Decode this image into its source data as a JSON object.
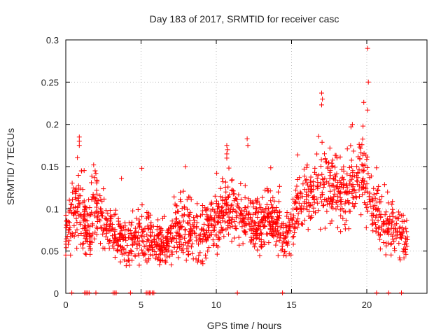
{
  "chart_data": {
    "type": "scatter",
    "title": "Day 183 of 2017, SRMTID for receiver casc",
    "xlabel": "GPS time / hours",
    "ylabel": "SRMTID / TECUs",
    "xlim": [
      0,
      24
    ],
    "ylim": [
      0,
      0.3
    ],
    "x_ticks": [
      0,
      5,
      10,
      15,
      20
    ],
    "x_tick_labels": [
      "0",
      "5",
      "10",
      "15",
      "20"
    ],
    "y_ticks": [
      0,
      0.05,
      0.1,
      0.15,
      0.2,
      0.25,
      0.3
    ],
    "y_tick_labels": [
      "0",
      "0.05",
      "0.1",
      "0.15",
      "0.2",
      "0.25",
      "0.3"
    ],
    "grid": true,
    "marker": "+",
    "color": "#ff0000",
    "series": [
      {
        "name": "SRMTID",
        "profile": [
          [
            0.0,
            0.07,
            0.03
          ],
          [
            0.5,
            0.09,
            0.035
          ],
          [
            0.8,
            0.11,
            0.04
          ],
          [
            1.2,
            0.08,
            0.035
          ],
          [
            1.6,
            0.07,
            0.03
          ],
          [
            2.0,
            0.11,
            0.035
          ],
          [
            2.5,
            0.08,
            0.03
          ],
          [
            3.0,
            0.07,
            0.03
          ],
          [
            3.5,
            0.07,
            0.03
          ],
          [
            4.0,
            0.06,
            0.025
          ],
          [
            4.5,
            0.06,
            0.025
          ],
          [
            5.0,
            0.07,
            0.03
          ],
          [
            5.5,
            0.065,
            0.025
          ],
          [
            6.0,
            0.06,
            0.025
          ],
          [
            6.5,
            0.06,
            0.025
          ],
          [
            7.0,
            0.065,
            0.025
          ],
          [
            7.5,
            0.075,
            0.03
          ],
          [
            8.0,
            0.08,
            0.035
          ],
          [
            8.5,
            0.07,
            0.03
          ],
          [
            9.0,
            0.07,
            0.03
          ],
          [
            9.5,
            0.08,
            0.03
          ],
          [
            10.0,
            0.08,
            0.03
          ],
          [
            10.5,
            0.1,
            0.035
          ],
          [
            11.0,
            0.1,
            0.035
          ],
          [
            11.5,
            0.09,
            0.03
          ],
          [
            12.0,
            0.09,
            0.03
          ],
          [
            12.5,
            0.08,
            0.03
          ],
          [
            13.0,
            0.08,
            0.03
          ],
          [
            13.5,
            0.09,
            0.03
          ],
          [
            14.0,
            0.08,
            0.03
          ],
          [
            14.5,
            0.07,
            0.03
          ],
          [
            15.0,
            0.07,
            0.025
          ],
          [
            15.5,
            0.11,
            0.035
          ],
          [
            16.0,
            0.11,
            0.035
          ],
          [
            16.5,
            0.12,
            0.035
          ],
          [
            17.0,
            0.12,
            0.04
          ],
          [
            17.5,
            0.13,
            0.04
          ],
          [
            18.0,
            0.13,
            0.04
          ],
          [
            18.5,
            0.11,
            0.04
          ],
          [
            19.0,
            0.13,
            0.04
          ],
          [
            19.5,
            0.14,
            0.045
          ],
          [
            20.0,
            0.12,
            0.04
          ],
          [
            20.5,
            0.1,
            0.035
          ],
          [
            21.0,
            0.08,
            0.03
          ],
          [
            21.5,
            0.08,
            0.03
          ],
          [
            22.0,
            0.07,
            0.03
          ],
          [
            22.7,
            0.07,
            0.025
          ]
        ],
        "count": 1700,
        "peaks": [
          [
            20.05,
            0.29
          ],
          [
            20.1,
            0.25
          ],
          [
            19.8,
            0.226
          ],
          [
            20.05,
            0.217
          ],
          [
            17.0,
            0.237
          ],
          [
            17.05,
            0.23
          ],
          [
            17.0,
            0.223
          ],
          [
            19.75,
            0.198
          ],
          [
            18.95,
            0.197
          ],
          [
            16.8,
            0.186
          ],
          [
            0.9,
            0.185
          ],
          [
            0.9,
            0.18
          ],
          [
            0.9,
            0.175
          ],
          [
            12.05,
            0.183
          ],
          [
            10.7,
            0.175
          ],
          [
            10.75,
            0.17
          ],
          [
            12.1,
            0.175
          ],
          [
            10.7,
            0.165
          ],
          [
            7.95,
            0.15
          ],
          [
            5.05,
            0.148
          ],
          [
            1.85,
            0.152
          ],
          [
            1.95,
            0.145
          ],
          [
            2.0,
            0.142
          ],
          [
            3.7,
            0.136
          ],
          [
            10.7,
            0.16
          ]
        ],
        "near_zero_x": [
          0.4,
          1.25,
          1.35,
          1.45,
          1.55,
          2.0,
          3.15,
          3.25,
          3.35,
          4.3,
          5.35,
          5.45,
          5.55,
          5.65,
          5.75,
          5.85,
          11.4,
          14.4,
          20.65,
          21.45,
          22.3
        ]
      }
    ]
  }
}
